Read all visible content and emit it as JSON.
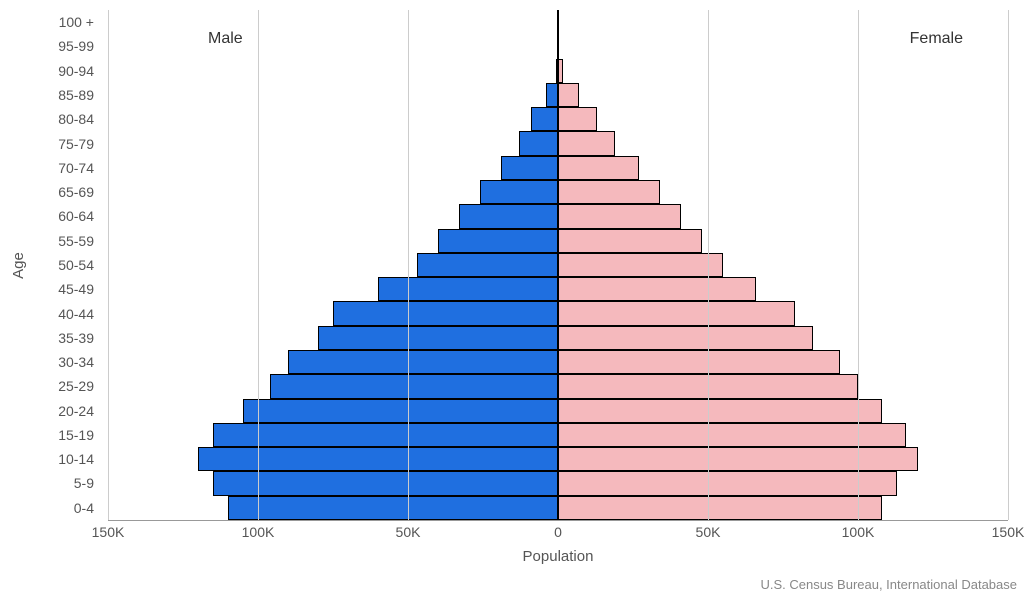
{
  "chart": {
    "type": "population-pyramid",
    "y_axis_title": "Age",
    "x_axis_title": "Population",
    "source_text": "U.S. Census Bureau, International Database",
    "background_color": "#ffffff",
    "grid_color": "#cccccc",
    "axis_font_size": 14,
    "title_font_size": 15,
    "male": {
      "label": "Male",
      "color": "#1f6fe0",
      "border_color": "#000000"
    },
    "female": {
      "label": "Female",
      "color": "#f5b9bd",
      "border_color": "#000000"
    },
    "x_axis": {
      "min": -150000,
      "max": 150000,
      "ticks": [
        -150000,
        -100000,
        -50000,
        0,
        50000,
        100000,
        150000
      ],
      "tick_labels": [
        "150K",
        "100K",
        "50K",
        "0",
        "50K",
        "100K",
        "150K"
      ]
    },
    "age_groups": [
      {
        "label": "100 +",
        "male": 0,
        "female": 0
      },
      {
        "label": "95-99",
        "male": 0,
        "female": 0
      },
      {
        "label": "90-94",
        "male": 500,
        "female": 1500
      },
      {
        "label": "85-89",
        "male": 4000,
        "female": 7000
      },
      {
        "label": "80-84",
        "male": 9000,
        "female": 13000
      },
      {
        "label": "75-79",
        "male": 13000,
        "female": 19000
      },
      {
        "label": "70-74",
        "male": 19000,
        "female": 27000
      },
      {
        "label": "65-69",
        "male": 26000,
        "female": 34000
      },
      {
        "label": "60-64",
        "male": 33000,
        "female": 41000
      },
      {
        "label": "55-59",
        "male": 40000,
        "female": 48000
      },
      {
        "label": "50-54",
        "male": 47000,
        "female": 55000
      },
      {
        "label": "45-49",
        "male": 60000,
        "female": 66000
      },
      {
        "label": "40-44",
        "male": 75000,
        "female": 79000
      },
      {
        "label": "35-39",
        "male": 80000,
        "female": 85000
      },
      {
        "label": "30-34",
        "male": 90000,
        "female": 94000
      },
      {
        "label": "25-29",
        "male": 96000,
        "female": 100000
      },
      {
        "label": "20-24",
        "male": 105000,
        "female": 108000
      },
      {
        "label": "15-19",
        "male": 115000,
        "female": 116000
      },
      {
        "label": "10-14",
        "male": 120000,
        "female": 120000
      },
      {
        "label": "5-9",
        "male": 115000,
        "female": 113000
      },
      {
        "label": "0-4",
        "male": 110000,
        "female": 108000
      }
    ]
  }
}
